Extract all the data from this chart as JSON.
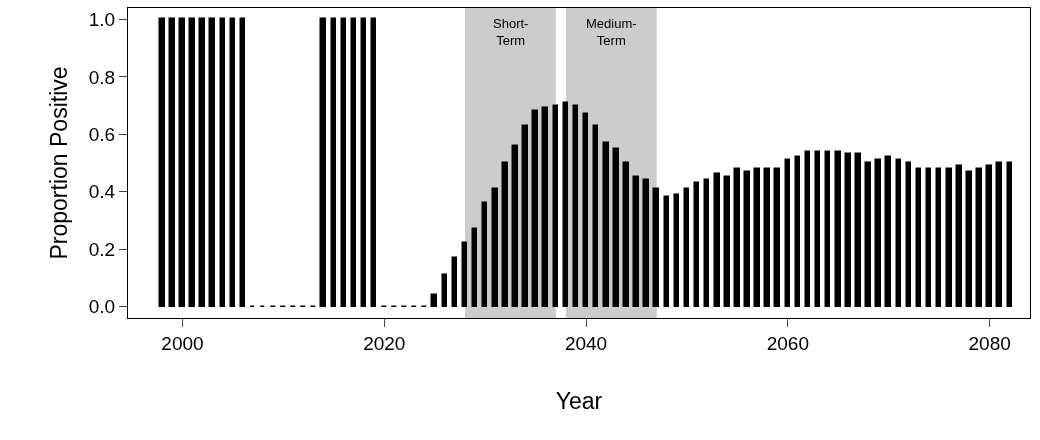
{
  "chart_data": {
    "type": "bar",
    "xlabel": "Year",
    "ylabel": "Proportion Positive",
    "x": [
      1998,
      1999,
      2000,
      2001,
      2002,
      2003,
      2004,
      2005,
      2006,
      2007,
      2008,
      2009,
      2010,
      2011,
      2012,
      2013,
      2014,
      2015,
      2016,
      2017,
      2018,
      2019,
      2020,
      2021,
      2022,
      2023,
      2024,
      2025,
      2026,
      2027,
      2028,
      2029,
      2030,
      2031,
      2032,
      2033,
      2034,
      2035,
      2036,
      2037,
      2038,
      2039,
      2040,
      2041,
      2042,
      2043,
      2044,
      2045,
      2046,
      2047,
      2048,
      2049,
      2050,
      2051,
      2052,
      2053,
      2054,
      2055,
      2056,
      2057,
      2058,
      2059,
      2060,
      2061,
      2062,
      2063,
      2064,
      2065,
      2066,
      2067,
      2068,
      2069,
      2070,
      2071,
      2072,
      2073,
      2074,
      2075,
      2076,
      2077,
      2078,
      2079,
      2080,
      2081,
      2082
    ],
    "values": [
      1,
      1,
      1,
      1,
      1,
      1,
      1,
      1,
      1,
      0,
      0,
      0,
      0,
      0,
      0,
      0,
      1,
      1,
      1,
      1,
      1,
      1,
      0,
      0,
      0,
      0,
      0,
      0.04,
      0.11,
      0.17,
      0.22,
      0.27,
      0.36,
      0.41,
      0.5,
      0.56,
      0.63,
      0.68,
      0.69,
      0.7,
      0.71,
      0.7,
      0.67,
      0.63,
      0.57,
      0.55,
      0.5,
      0.45,
      0.44,
      0.41,
      0.38,
      0.39,
      0.41,
      0.43,
      0.44,
      0.46,
      0.45,
      0.48,
      0.47,
      0.48,
      0.48,
      0.48,
      0.51,
      0.52,
      0.54,
      0.54,
      0.54,
      0.54,
      0.53,
      0.53,
      0.5,
      0.51,
      0.52,
      0.51,
      0.5,
      0.48,
      0.48,
      0.48,
      0.48,
      0.49,
      0.47,
      0.48,
      0.49,
      0.5,
      0.5
    ],
    "color": "#000000",
    "xlim": [
      1994.6,
      2084
    ],
    "xticks": [
      2000,
      2020,
      2040,
      2060,
      2080
    ],
    "ylim": [
      -0.04,
      1.04
    ],
    "yticks": [
      {
        "value": 0,
        "label": "0.0"
      },
      {
        "value": 0.2,
        "label": "0.2"
      },
      {
        "value": 0.4,
        "label": "0.4"
      },
      {
        "value": 0.6,
        "label": "0.6"
      },
      {
        "value": 0.8,
        "label": "0.8"
      },
      {
        "value": 1,
        "label": "1.0"
      }
    ],
    "bands": [
      {
        "axis": "x",
        "from": 2028,
        "to": 2037,
        "label": "Short-\nTerm",
        "color": "#cccccc"
      },
      {
        "axis": "x",
        "from": 2038,
        "to": 2047,
        "label": "Medium-\nTerm",
        "color": "#cccccc"
      }
    ],
    "grid": false
  }
}
